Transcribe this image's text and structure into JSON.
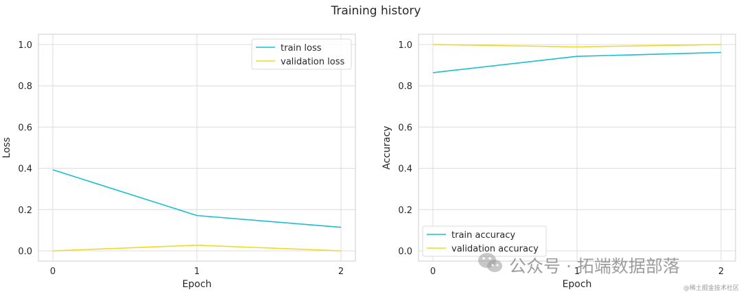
{
  "figure": {
    "title": "Training history"
  },
  "chart_data": [
    {
      "type": "line",
      "title": "",
      "xlabel": "Epoch",
      "ylabel": "Loss",
      "xlim": [
        -0.1,
        2.1
      ],
      "ylim": [
        -0.05,
        1.05
      ],
      "x_ticks": [
        0,
        1,
        2
      ],
      "y_ticks": [
        0.0,
        0.2,
        0.4,
        0.6,
        0.8,
        1.0
      ],
      "x_tick_labels": [
        "0",
        "1",
        "2"
      ],
      "y_tick_labels": [
        "0.0",
        "0.2",
        "0.4",
        "0.6",
        "0.8",
        "1.0"
      ],
      "grid": true,
      "legend_position": "top-right",
      "series": [
        {
          "name": "train loss",
          "color": "#17becf",
          "x": [
            0,
            1,
            2
          ],
          "y": [
            0.393,
            0.171,
            0.114
          ]
        },
        {
          "name": "validation loss",
          "color": "#f2d91f",
          "x": [
            0,
            1,
            2
          ],
          "y": [
            0.0,
            0.027,
            0.0
          ]
        }
      ]
    },
    {
      "type": "line",
      "title": "",
      "xlabel": "Epoch",
      "ylabel": "Accuracy",
      "xlim": [
        -0.1,
        2.1
      ],
      "ylim": [
        -0.05,
        1.05
      ],
      "x_ticks": [
        0,
        1,
        2
      ],
      "y_ticks": [
        0.0,
        0.2,
        0.4,
        0.6,
        0.8,
        1.0
      ],
      "x_tick_labels": [
        "0",
        "1",
        "2"
      ],
      "y_tick_labels": [
        "0.0",
        "0.2",
        "0.4",
        "0.6",
        "0.8",
        "1.0"
      ],
      "grid": true,
      "legend_position": "bottom-left",
      "series": [
        {
          "name": "train accuracy",
          "color": "#17becf",
          "x": [
            0,
            1,
            2
          ],
          "y": [
            0.864,
            0.943,
            0.962
          ]
        },
        {
          "name": "validation accuracy",
          "color": "#f2d91f",
          "x": [
            0,
            1,
            2
          ],
          "y": [
            1.0,
            0.989,
            1.0
          ]
        }
      ]
    }
  ],
  "watermark": {
    "main_text": "公众号 · 拓端数据部落",
    "corner_text": "@稀土掘金技术社区",
    "icon": "wechat-icon"
  }
}
